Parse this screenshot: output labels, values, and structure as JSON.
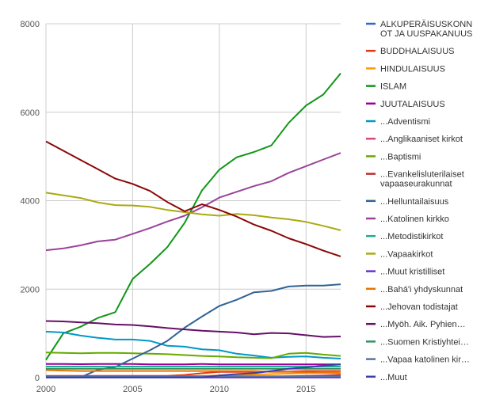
{
  "chart_data": {
    "type": "line",
    "x": [
      2000,
      2001,
      2002,
      2003,
      2004,
      2005,
      2006,
      2007,
      2008,
      2009,
      2010,
      2011,
      2012,
      2013,
      2014,
      2015,
      2016,
      2017
    ],
    "xticks": [
      "2000",
      "2005",
      "2010",
      "2015"
    ],
    "yticks": [
      "0",
      "2000",
      "4000",
      "6000",
      "8000"
    ],
    "xlim": [
      2000,
      2017
    ],
    "ylim": [
      0,
      8000
    ],
    "grid": true,
    "legend_position": "right",
    "series": [
      {
        "name": "ALKUPERÄISUSKONNOT JA UUSPAKANUUS",
        "label_lines": [
          "ALKUPERÄISUSKONN",
          "OT JA UUSPAKANUUS"
        ],
        "color": "#3366cc",
        "values": [
          5,
          5,
          5,
          5,
          5,
          5,
          5,
          5,
          5,
          5,
          5,
          5,
          5,
          5,
          5,
          5,
          5,
          5
        ]
      },
      {
        "name": "BUDDHALAISUUS",
        "label_lines": [
          "BUDDHALAISUUS"
        ],
        "color": "#dc3912",
        "values": [
          40,
          40,
          40,
          40,
          40,
          40,
          40,
          40,
          60,
          100,
          130,
          130,
          130,
          140,
          140,
          150,
          150,
          150
        ]
      },
      {
        "name": "HINDULAISUUS",
        "label_lines": [
          "HINDULAISUUS"
        ],
        "color": "#ff9900",
        "values": [
          5,
          5,
          5,
          10,
          10,
          10,
          20,
          20,
          30,
          40,
          50,
          60,
          70,
          80,
          90,
          100,
          110,
          120
        ]
      },
      {
        "name": "ISLAM",
        "label_lines": [
          "ISLAM"
        ],
        "color": "#109618",
        "values": [
          400,
          1000,
          1150,
          1350,
          1480,
          2230,
          2570,
          2950,
          3500,
          4230,
          4700,
          4980,
          5100,
          5250,
          5760,
          6150,
          6400,
          6880
        ]
      },
      {
        "name": "JUUTALAISUUS",
        "label_lines": [
          "JUUTALAISUUS"
        ],
        "color": "#990099",
        "values": [
          310,
          310,
          305,
          310,
          310,
          310,
          300,
          300,
          300,
          310,
          300,
          300,
          300,
          300,
          300,
          300,
          300,
          300
        ]
      },
      {
        "name": "...Adventismi",
        "label_lines": [
          "...Adventismi"
        ],
        "color": "#0099c6",
        "values": [
          1040,
          1020,
          950,
          900,
          860,
          860,
          830,
          720,
          700,
          640,
          620,
          540,
          500,
          450,
          470,
          480,
          450,
          430
        ]
      },
      {
        "name": "...Anglikaaniset kirkot",
        "label_lines": [
          "...Anglikaaniset kirkot"
        ],
        "color": "#dd4477",
        "values": [
          5,
          5,
          5,
          5,
          5,
          5,
          5,
          5,
          5,
          5,
          5,
          5,
          5,
          5,
          5,
          5,
          5,
          5
        ]
      },
      {
        "name": "...Baptismi",
        "label_lines": [
          "...Baptismi"
        ],
        "color": "#66aa00",
        "values": [
          570,
          560,
          550,
          560,
          560,
          550,
          540,
          530,
          510,
          490,
          480,
          460,
          450,
          440,
          540,
          560,
          520,
          490
        ]
      },
      {
        "name": "...Evankelisluterilaiset vapaaseurakunnat",
        "label_lines": [
          "...Evankelisluterilaiset",
          "vapaaseurakunnat"
        ],
        "color": "#b82e2e",
        "values": [
          10,
          10,
          10,
          10,
          10,
          10,
          10,
          10,
          10,
          10,
          10,
          10,
          10,
          20,
          30,
          40,
          50,
          60
        ]
      },
      {
        "name": "...Helluntailaisuus",
        "label_lines": [
          "...Helluntailaisuus"
        ],
        "color": "#316395",
        "values": [
          5,
          5,
          5,
          180,
          240,
          430,
          620,
          830,
          1130,
          1380,
          1620,
          1760,
          1930,
          1960,
          2060,
          2080,
          2080,
          2110
        ]
      },
      {
        "name": "...Katolinen kirkko",
        "label_lines": [
          "...Katolinen kirkko"
        ],
        "color": "#994499",
        "values": [
          2880,
          2920,
          2990,
          3080,
          3120,
          3250,
          3380,
          3530,
          3660,
          3850,
          4070,
          4200,
          4330,
          4440,
          4630,
          4780,
          4930,
          5080
        ]
      },
      {
        "name": "...Metodistikirkot",
        "label_lines": [
          "...Metodistikirkot"
        ],
        "color": "#22aa99",
        "values": [
          250,
          250,
          250,
          250,
          250,
          250,
          250,
          250,
          250,
          250,
          250,
          250,
          250,
          250,
          250,
          250,
          250,
          250
        ]
      },
      {
        "name": "...Vapaakirkot",
        "label_lines": [
          "...Vapaakirkot"
        ],
        "color": "#aaaa11",
        "values": [
          4180,
          4120,
          4060,
          3960,
          3900,
          3890,
          3860,
          3790,
          3740,
          3690,
          3660,
          3700,
          3670,
          3620,
          3580,
          3520,
          3430,
          3330
        ]
      },
      {
        "name": "...Muut kristilliset",
        "label_lines": [
          "...Muut kristilliset"
        ],
        "color": "#6633cc",
        "values": [
          5,
          5,
          5,
          5,
          5,
          5,
          5,
          5,
          5,
          5,
          5,
          5,
          5,
          5,
          5,
          5,
          5,
          5
        ]
      },
      {
        "name": "...Bahá'i yhdyskunnat",
        "label_lines": [
          "...Bahá'i yhdyskunnat"
        ],
        "color": "#e67300",
        "values": [
          170,
          160,
          150,
          150,
          150,
          150,
          150,
          150,
          150,
          150,
          150,
          150,
          150,
          130,
          130,
          120,
          110,
          100
        ]
      },
      {
        "name": "...Jehovan todistajat",
        "label_lines": [
          "...Jehovan todistajat"
        ],
        "color": "#8b0707",
        "values": [
          5340,
          5130,
          4920,
          4710,
          4500,
          4380,
          4220,
          3970,
          3760,
          3920,
          3790,
          3640,
          3460,
          3320,
          3150,
          3020,
          2870,
          2740
        ]
      },
      {
        "name": "...Myöh. Aik. Pyhien...",
        "label_lines": [
          "...Myöh. Aik. Pyhien…"
        ],
        "color": "#651067",
        "values": [
          1280,
          1270,
          1250,
          1230,
          1200,
          1190,
          1160,
          1120,
          1090,
          1060,
          1040,
          1020,
          980,
          1010,
          1000,
          960,
          920,
          930
        ]
      },
      {
        "name": "...Suomen Kristiyhteisö",
        "label_lines": [
          "...Suomen Kristiyhtei…"
        ],
        "color": "#329262",
        "values": [
          200,
          200,
          200,
          200,
          200,
          200,
          200,
          200,
          200,
          200,
          200,
          200,
          200,
          200,
          200,
          200,
          200,
          200
        ]
      },
      {
        "name": "...Vapaa katolinen kirkko",
        "label_lines": [
          "...Vapaa katolinen kir…"
        ],
        "color": "#5574a6",
        "values": [
          30,
          30,
          30,
          30,
          30,
          30,
          30,
          30,
          30,
          30,
          30,
          30,
          30,
          30,
          30,
          30,
          30,
          30
        ]
      },
      {
        "name": "...Muut",
        "label_lines": [
          "...Muut"
        ],
        "color": "#3b3eac",
        "values": [
          5,
          5,
          5,
          5,
          5,
          5,
          5,
          5,
          5,
          5,
          50,
          80,
          100,
          150,
          200,
          230,
          270,
          300
        ]
      }
    ]
  }
}
